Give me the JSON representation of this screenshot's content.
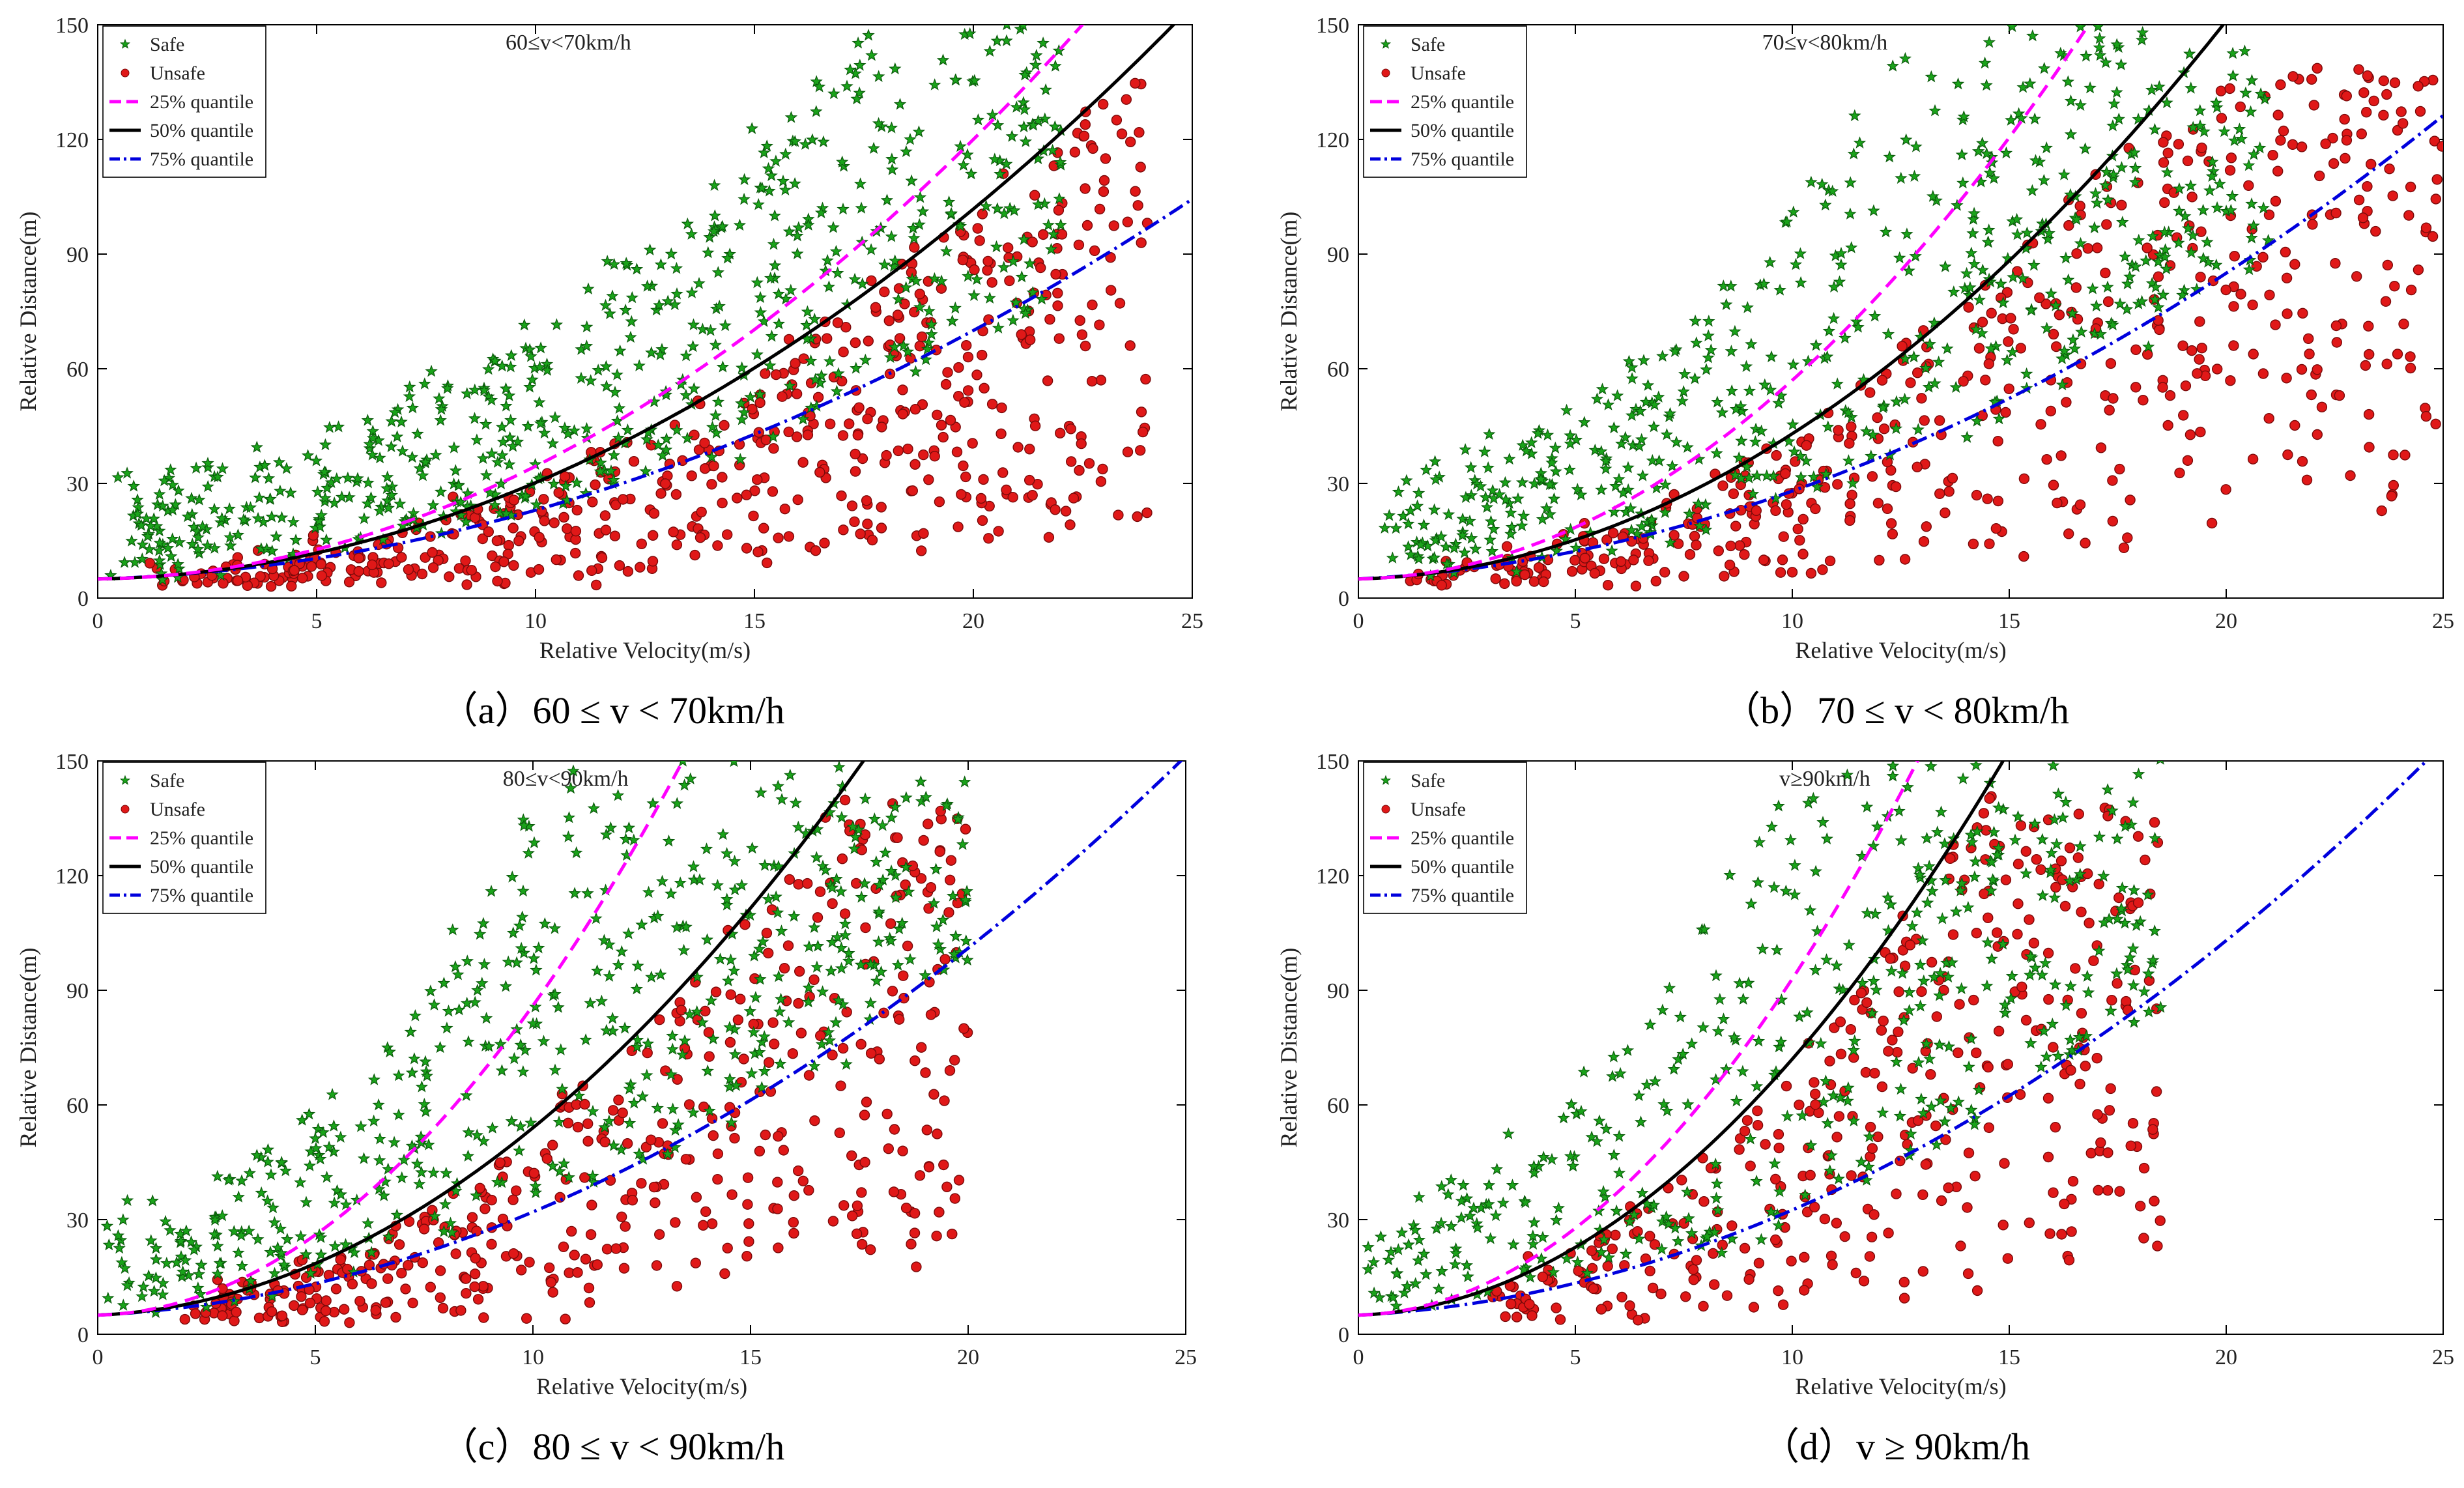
{
  "figure": {
    "description_label": "Relative distance vs relative velocity scatter plots with quantile regression curves for four speed ranges"
  },
  "legend_labels": {
    "safe": "Safe",
    "unsafe": "Unsafe",
    "q25": "25% quantile",
    "q50": "50% quantile",
    "q75": "75% quantile"
  },
  "colors": {
    "safe": "#1aa31a",
    "safe_edge": "#0b5a0b",
    "unsafe": "#e01818",
    "unsafe_edge": "#7a0a0a",
    "q25": "#ff00ff",
    "q50": "#000000",
    "q75": "#0000dd"
  },
  "chart_data": [
    {
      "type": "scatter",
      "id": "a",
      "title": "60≤v<70km/h",
      "caption_prefix": "（a）",
      "caption_text": "60 ≤ v < 70km/h",
      "xlabel": "Relative Velocity(m/s)",
      "ylabel": "Relative Distance(m)",
      "xlim": [
        0,
        25
      ],
      "ylim": [
        0,
        150
      ],
      "xticks": [
        0,
        5,
        10,
        15,
        20,
        25
      ],
      "yticks": [
        0,
        30,
        60,
        90,
        120,
        150
      ],
      "legend_position": "top-left",
      "quantile_curves": {
        "q25": {
          "a": 5,
          "b": 0.15,
          "c": 0.28
        },
        "q50": {
          "a": 5,
          "b": 0.2,
          "c": 0.232
        },
        "q75": {
          "a": 5,
          "b": 0.35,
          "c": 0.145
        }
      },
      "safe_cloud": {
        "x_range": [
          0.2,
          22
        ],
        "seed": 11,
        "count": 620
      },
      "unsafe_cloud": {
        "x_range": [
          1,
          24
        ],
        "seed": 23,
        "count": 560
      }
    },
    {
      "type": "scatter",
      "id": "b",
      "title": "70≤v<80km/h",
      "caption_prefix": "（b）",
      "caption_text": "70 ≤ v < 80km/h",
      "xlabel": "Relative Velocity(m/s)",
      "ylabel": "Relative Distance(m)",
      "xlim": [
        0,
        25
      ],
      "ylim": [
        0,
        150
      ],
      "xticks": [
        0,
        5,
        10,
        15,
        20,
        25
      ],
      "yticks": [
        0,
        30,
        60,
        90,
        120,
        150
      ],
      "legend_position": "top-left",
      "quantile_curves": {
        "q25": {
          "a": 5,
          "b": 0.2,
          "c": 0.5
        },
        "q50": {
          "a": 5,
          "b": 0.3,
          "c": 0.35
        },
        "q75": {
          "a": 5,
          "b": 0.6,
          "c": 0.17
        }
      },
      "safe_cloud": {
        "x_range": [
          0.5,
          21
        ],
        "seed": 37,
        "count": 560
      },
      "unsafe_cloud": {
        "x_range": [
          0.8,
          25
        ],
        "seed": 41,
        "count": 500
      }
    },
    {
      "type": "scatter",
      "id": "c",
      "title": "80≤v<90km/h",
      "caption_prefix": "（c）",
      "caption_text": "80 ≤ v < 90km/h",
      "xlabel": "Relative Velocity(m/s)",
      "ylabel": "Relative Distance(m)",
      "xlim": [
        0,
        25
      ],
      "ylim": [
        0,
        150
      ],
      "xticks": [
        0,
        5,
        10,
        15,
        20,
        25
      ],
      "yticks": [
        0,
        30,
        60,
        90,
        120,
        150
      ],
      "legend_position": "top-left",
      "quantile_curves": {
        "q25": {
          "a": 5,
          "b": 0.3,
          "c": 0.78
        },
        "q50": {
          "a": 5,
          "b": 0.5,
          "c": 0.44
        },
        "q75": {
          "a": 5,
          "b": 0.6,
          "c": 0.21
        }
      },
      "safe_cloud": {
        "x_range": [
          0,
          20
        ],
        "seed": 53,
        "count": 520
      },
      "unsafe_cloud": {
        "x_range": [
          2,
          20
        ],
        "seed": 67,
        "count": 450
      }
    },
    {
      "type": "scatter",
      "id": "d",
      "title": "v≥90km/h",
      "caption_prefix": "（d）",
      "caption_text": "v ≥ 90km/h",
      "xlabel": "Relative Velocity(m/s)",
      "ylabel": "Relative Distance(m)",
      "xlim": [
        0,
        25
      ],
      "ylim": [
        0,
        150
      ],
      "xticks": [
        0,
        5,
        10,
        15,
        20,
        25
      ],
      "yticks": [
        0,
        30,
        60,
        90,
        120,
        150
      ],
      "legend_position": "top-left",
      "quantile_curves": {
        "q25": {
          "a": 5,
          "b": 0.3,
          "c": 0.85
        },
        "q50": {
          "a": 5,
          "b": 0.4,
          "c": 0.63
        },
        "q75": {
          "a": 5,
          "b": 0.6,
          "c": 0.215
        }
      },
      "safe_cloud": {
        "x_range": [
          0.2,
          18.5
        ],
        "seed": 71,
        "count": 430
      },
      "unsafe_cloud": {
        "x_range": [
          3,
          18.5
        ],
        "seed": 83,
        "count": 380
      }
    }
  ]
}
